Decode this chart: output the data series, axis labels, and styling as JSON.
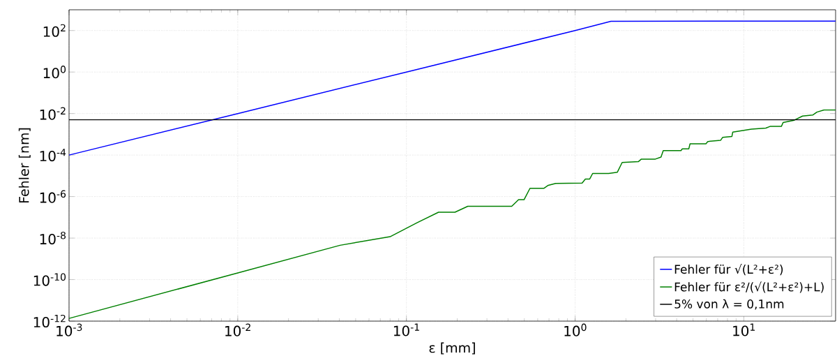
{
  "chart_data": {
    "type": "line",
    "xlabel": "ε [mm]",
    "ylabel": "Fehler [nm]",
    "log": "xy",
    "grid": true,
    "legend": "bottom right",
    "line_style": "solid",
    "marker": "none",
    "xlim": [
      0.001,
      35
    ],
    "ylim": [
      1e-12,
      1000
    ],
    "xticks": [
      {
        "value": 0.001,
        "label": "10$^{-3}$"
      },
      {
        "value": 0.01,
        "label": "10$^{-2}$"
      },
      {
        "value": 0.1,
        "label": "10$^{-1}$"
      },
      {
        "value": 1,
        "label": "10$^{0}$"
      },
      {
        "value": 10,
        "label": "10$^{1}$"
      }
    ],
    "yticks": [
      {
        "value": 1e-12,
        "label": "10$^{-12}$"
      },
      {
        "value": 1e-10,
        "label": "10$^{-10}$"
      },
      {
        "value": 1e-08,
        "label": "10$^{-8}$"
      },
      {
        "value": 1e-06,
        "label": "10$^{-6}$"
      },
      {
        "value": 0.0001,
        "label": "10$^{-4}$"
      },
      {
        "value": 0.01,
        "label": "10$^{-2}$"
      },
      {
        "value": 1,
        "label": "10$^{0}$"
      },
      {
        "value": 100,
        "label": "10$^{2}$"
      }
    ],
    "series": [
      {
        "name": "Fehler für √(L²+ε²)",
        "color": "#0000ff",
        "x": [
          0.001,
          0.01,
          0.1,
          1,
          1.63,
          10,
          35
        ],
        "values": [
          0.0001,
          0.01,
          1,
          100,
          280,
          285,
          285
        ]
      },
      {
        "name": "Fehler für ε²/(√(L²+ε²)+L)",
        "color": "#008000",
        "x": [
          0.001,
          0.01,
          0.0404,
          0.08,
          0.116,
          0.155,
          0.194,
          0.231,
          0.421,
          0.462,
          0.498,
          0.54,
          0.652,
          0.693,
          0.767,
          1.1,
          1.15,
          1.22,
          1.27,
          1.58,
          1.78,
          1.9,
          2.37,
          2.47,
          2.99,
          3.23,
          3.33,
          4.24,
          4.32,
          4.72,
          4.8,
          5.96,
          6.12,
          7.28,
          7.5,
          8.5,
          8.6,
          9.55,
          11.1,
          13.5,
          14.3,
          16.7,
          17.1,
          19.9,
          22.3,
          25.6,
          27.1,
          29.9,
          35
        ],
        "values": [
          1.35e-12,
          2.1e-10,
          4.5e-09,
          1.17e-08,
          5.6e-08,
          1.76e-07,
          1.76e-07,
          3.4e-07,
          3.4e-07,
          7.1e-07,
          7.1e-07,
          2.5e-06,
          2.5e-06,
          3.5e-06,
          4.3e-06,
          4.5e-06,
          7e-06,
          7e-06,
          1.3e-05,
          1.3e-05,
          1.5e-05,
          4.4e-05,
          4.8e-05,
          6.4e-05,
          6.4e-05,
          8e-05,
          0.000165,
          0.000165,
          0.0002,
          0.0002,
          0.00035,
          0.00035,
          0.00045,
          0.00051,
          0.00072,
          0.00079,
          0.00128,
          0.00145,
          0.00176,
          0.002,
          0.0024,
          0.0024,
          0.0037,
          0.0048,
          0.0076,
          0.0085,
          0.0117,
          0.015,
          0.015
        ]
      }
    ],
    "ref_lines": [
      {
        "axis": "y",
        "value": 0.005,
        "label": "5% von λ = 0,1nm",
        "color": "#000000",
        "line_style": "solid"
      }
    ]
  }
}
